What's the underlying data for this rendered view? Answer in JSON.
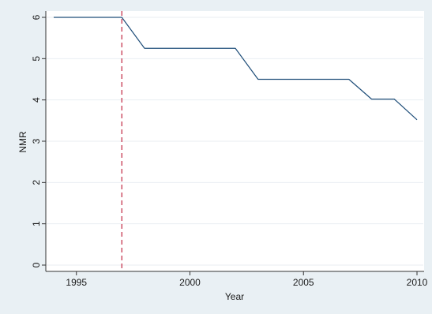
{
  "chart_data": {
    "type": "line",
    "title": "",
    "xlabel": "Year",
    "ylabel": "NMR",
    "xlim": [
      1994,
      2010
    ],
    "ylim": [
      0,
      6
    ],
    "xticks": [
      "1995",
      "2000",
      "2005",
      "2010"
    ],
    "yticks": [
      "0",
      "1",
      "2",
      "3",
      "4",
      "5",
      "6"
    ],
    "grid": true,
    "legend": "none",
    "series": [
      {
        "x": [
          1994,
          1995,
          1996,
          1997,
          1998,
          1999,
          2000,
          2001,
          2002,
          2003,
          2004,
          2005,
          2006,
          2007,
          2008,
          2009,
          2010
        ],
        "y": [
          6.0,
          6.0,
          6.0,
          6.0,
          5.25,
          5.25,
          5.25,
          5.25,
          5.25,
          4.5,
          4.5,
          4.5,
          4.5,
          4.5,
          4.02,
          4.02,
          3.52
        ]
      }
    ],
    "reference_line": {
      "orientation": "vertical",
      "x": 1997,
      "style": "dashed"
    },
    "colors": {
      "line": "#1f4e79",
      "reference": "#c0233f",
      "background": "#e9f0f4",
      "plot": "#ffffff",
      "grid": "#e9eef2"
    }
  }
}
